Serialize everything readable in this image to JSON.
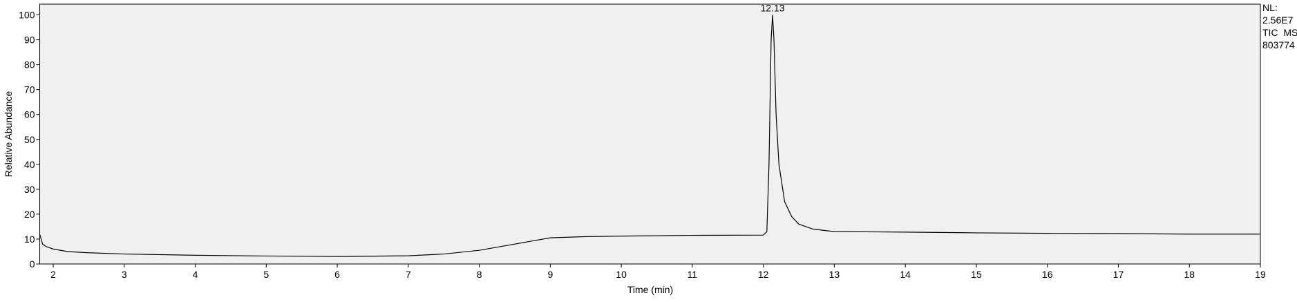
{
  "chart_data": {
    "type": "line",
    "x_label": "Time (min)",
    "y_label": "Relative Abundance",
    "xlim": [
      1.81,
      19
    ],
    "ylim": [
      0,
      104.3
    ],
    "xticks": [
      2,
      3,
      4,
      5,
      6,
      7,
      8,
      9,
      10,
      11,
      12,
      13,
      14,
      15,
      16,
      17,
      18,
      19
    ],
    "yticks": [
      0,
      10,
      20,
      30,
      40,
      50,
      60,
      70,
      80,
      90,
      100
    ],
    "series": [
      {
        "color": "#000000",
        "x": [
          1.81,
          1.85,
          1.9,
          2.0,
          2.2,
          2.5,
          3,
          4,
          5,
          6,
          7,
          7.5,
          8,
          8.5,
          9,
          9.5,
          10,
          11,
          12,
          12.05,
          12.08,
          12.11,
          12.13,
          12.15,
          12.18,
          12.22,
          12.3,
          12.4,
          12.5,
          12.7,
          13,
          14,
          15,
          16,
          17,
          18,
          19
        ],
        "values": [
          12,
          8,
          7,
          6,
          5,
          4.5,
          4,
          3.5,
          3.2,
          3,
          3.3,
          4,
          5.5,
          8,
          10.5,
          11,
          11.2,
          11.5,
          11.6,
          13,
          40,
          90,
          100,
          90,
          60,
          40,
          25,
          19,
          16,
          14,
          13,
          12.8,
          12.5,
          12.3,
          12.2,
          12,
          12
        ]
      }
    ],
    "annotations": [
      {
        "text": "12.13",
        "x": 12.13,
        "y": 100
      }
    ],
    "side_labels": [
      "NL:",
      "2.56E7",
      "TIC  MS",
      "803774"
    ]
  }
}
